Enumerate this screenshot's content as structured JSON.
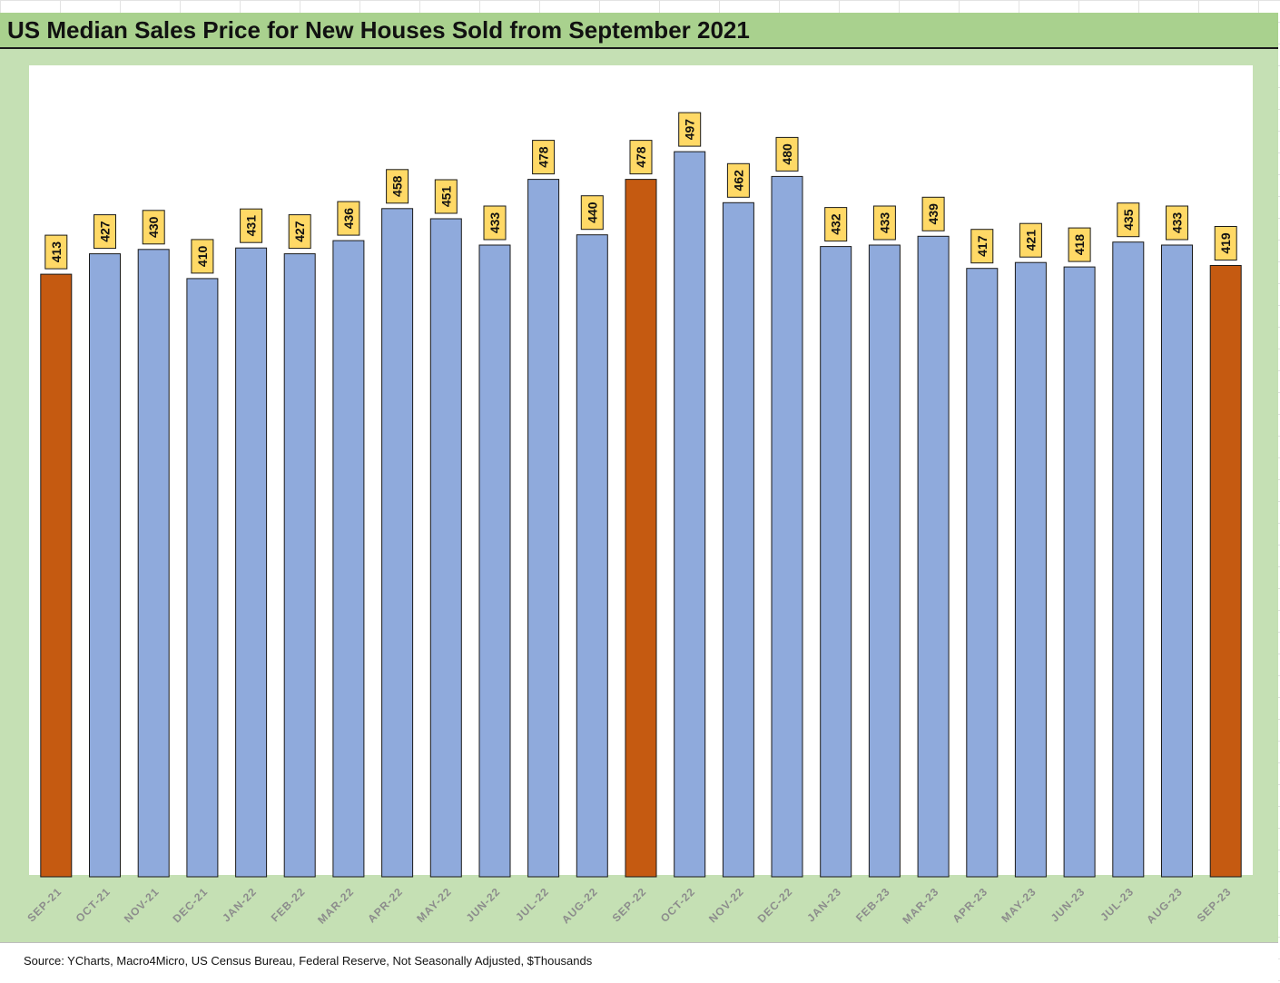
{
  "title": "US Median Sales Price for New Houses Sold from September 2021",
  "source": "Source: YCharts, Macro4Micro, US Census Bureau, Federal Reserve, Not Seasonally Adjusted, $Thousands",
  "colors": {
    "bar": "#8faadc",
    "highlight": "#c55a11",
    "label_bg": "#ffd966",
    "frame": "#c5e0b4",
    "title_bg": "#a9d18e",
    "tick_text": "#8c8c8c"
  },
  "chart_data": {
    "type": "bar",
    "title": "US Median Sales Price for New Houses Sold from September 2021",
    "xlabel": "",
    "ylabel": "",
    "categories": [
      "SEP-21",
      "OCT-21",
      "NOV-21",
      "DEC-21",
      "JAN-22",
      "FEB-22",
      "MAR-22",
      "APR-22",
      "MAY-22",
      "JUN-22",
      "JUL-22",
      "AUG-22",
      "SEP-22",
      "OCT-22",
      "NOV-22",
      "DEC-22",
      "JAN-23",
      "FEB-23",
      "MAR-23",
      "APR-23",
      "MAY-23",
      "JUN-23",
      "JUL-23",
      "AUG-23",
      "SEP-23"
    ],
    "values": [
      413,
      427,
      430,
      410,
      431,
      427,
      436,
      458,
      451,
      433,
      478,
      440,
      478,
      497,
      462,
      480,
      432,
      433,
      439,
      417,
      421,
      418,
      435,
      433,
      419
    ],
    "highlighted": [
      "SEP-21",
      "SEP-22",
      "SEP-23"
    ],
    "data_labels": true,
    "ylim": [
      0,
      560
    ],
    "y_axis_visible": false,
    "grid": false,
    "legend": "none"
  }
}
